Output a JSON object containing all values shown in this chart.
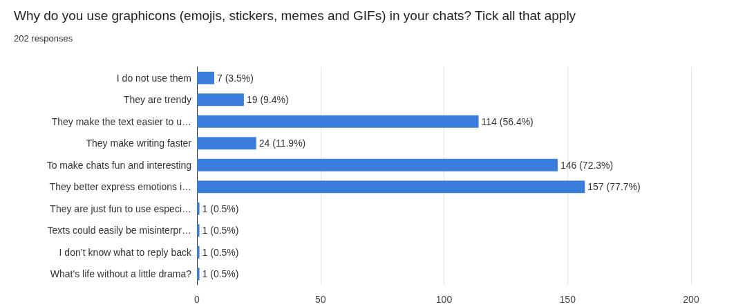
{
  "chart_data": {
    "type": "bar",
    "orientation": "horizontal",
    "title": "Why do you use graphicons (emojis, stickers, memes and GIFs) in your chats? Tick all that apply",
    "subtitle": "202 responses",
    "categories": [
      "I do not use them",
      "They are trendy",
      "They make the text easier to u…",
      "They make writing faster",
      "To make chats fun and interesting",
      "They better express emotions i…",
      "They are just fun to use especi…",
      "Texts could easily be misinterpr…",
      "I don’t know what to reply back",
      "What's life without a little drama?"
    ],
    "values": [
      7,
      19,
      114,
      24,
      146,
      157,
      1,
      1,
      1,
      1
    ],
    "value_labels": [
      "7 (3.5%)",
      "19 (9.4%)",
      "114 (56.4%)",
      "24 (11.9%)",
      "146 (72.3%)",
      "157 (77.7%)",
      "1 (0.5%)",
      "1 (0.5%)",
      "1 (0.5%)",
      "1 (0.5%)"
    ],
    "color": "#3b7ddd",
    "xlim": [
      0,
      200
    ],
    "xticks": [
      0,
      50,
      100,
      150,
      200
    ],
    "grid": "x"
  }
}
